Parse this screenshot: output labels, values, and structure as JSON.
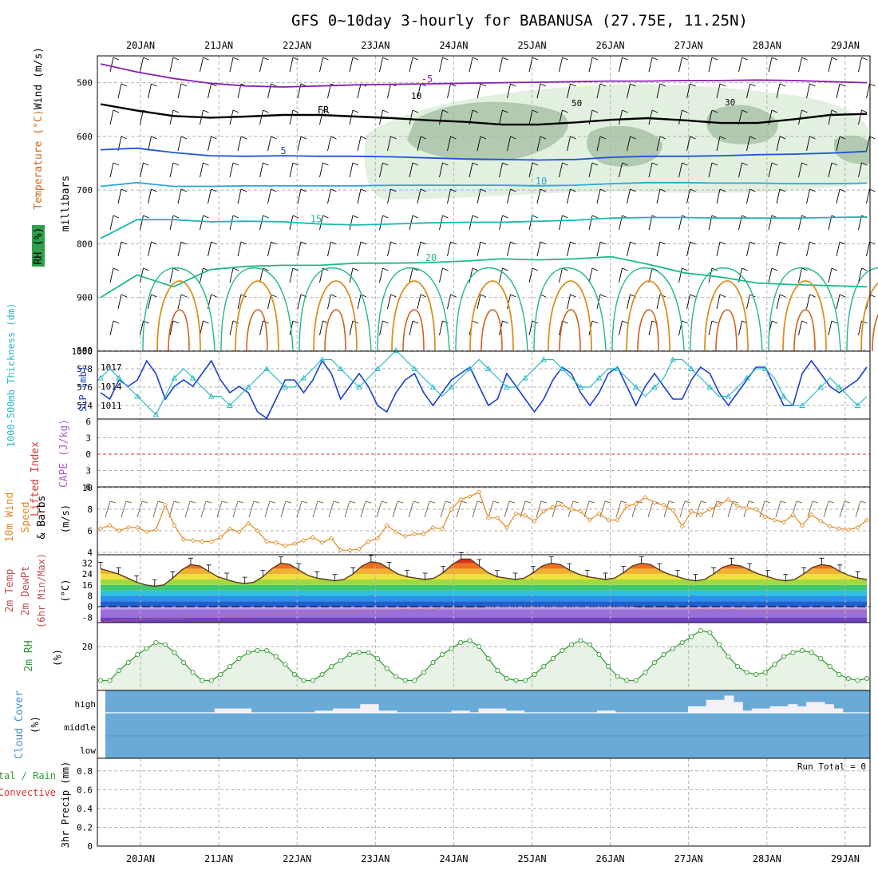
{
  "title": "GFS 0~10day 3-hourly for BABANUSA (27.75E, 11.25N)",
  "dates": [
    "20JAN",
    "21JAN",
    "22JAN",
    "23JAN",
    "24JAN",
    "25JAN",
    "26JAN",
    "27JAN",
    "28JAN",
    "29JAN"
  ],
  "colors": {
    "dewpoint": "#8a5cd8",
    "temp_line": "#5a3a1a",
    "wind_speed": "#e08a20",
    "barb": "#000000",
    "slp": "#1a3fcf",
    "thickness": "#2ab8c8",
    "rh": "#2f9a2f",
    "cloud": "#6aaad8",
    "cloud_gap": "#f4f0f8",
    "lifted": "#e03030",
    "cape": "#b060d0"
  },
  "chart_data": [
    {
      "type": "heatmap",
      "panel": "upper-air",
      "yaxis_label": "millibars",
      "ylim": [
        450,
        1000
      ],
      "yticks": [
        500,
        600,
        700,
        800,
        900,
        1000
      ],
      "side_labels": [
        "RH (%)",
        "Temperature (°C)",
        "Wind (m/s)"
      ],
      "isotherms": [
        {
          "label": "-5",
          "y": [
            465,
            480,
            492,
            501,
            506,
            508,
            506,
            504,
            503,
            502,
            501,
            500,
            499,
            498,
            497,
            497,
            496,
            496,
            495,
            496,
            498,
            500
          ]
        },
        {
          "label": "FR",
          "y": [
            540,
            552,
            562,
            565,
            563,
            560,
            560,
            563,
            566,
            570,
            573,
            578,
            578,
            574,
            569,
            566,
            570,
            575,
            575,
            568,
            560,
            558
          ]
        },
        {
          "label": "5",
          "y": [
            625,
            622,
            630,
            636,
            637,
            636,
            637,
            637,
            638,
            640,
            642,
            643,
            644,
            643,
            639,
            637,
            637,
            636,
            634,
            633,
            631,
            628
          ]
        },
        {
          "label": "10",
          "y": [
            693,
            686,
            693,
            693,
            692,
            692,
            692,
            692,
            691,
            691,
            691,
            691,
            692,
            691,
            688,
            686,
            686,
            687,
            687,
            688,
            688,
            687
          ]
        },
        {
          "label": "15",
          "y": [
            790,
            755,
            755,
            759,
            758,
            759,
            763,
            765,
            763,
            761,
            760,
            760,
            758,
            756,
            752,
            751,
            751,
            752,
            752,
            752,
            751,
            750
          ]
        },
        {
          "label": "20",
          "y": [
            900,
            858,
            880,
            848,
            842,
            840,
            840,
            836,
            836,
            835,
            832,
            828,
            830,
            828,
            824,
            838,
            854,
            862,
            873,
            876,
            878,
            880
          ]
        }
      ],
      "rh_labels": [
        "50",
        "30",
        "10"
      ]
    },
    {
      "type": "line",
      "panel": "thickness-slp",
      "yaxis_labels": [
        "1000-500mb Thickness (dm)",
        "SLP (mb)"
      ],
      "left_ticks": [
        574,
        576,
        578,
        580
      ],
      "right_ticks": [
        1011,
        1014,
        1017
      ],
      "series": [
        {
          "name": "SLP (mb)",
          "axis": "right",
          "values": [
            1013,
            1012,
            1015,
            1014,
            1015,
            1018,
            1016,
            1012,
            1014,
            1015,
            1014,
            1016,
            1018,
            1015,
            1013,
            1014,
            1013,
            1010,
            1009,
            1012,
            1015,
            1015,
            1013,
            1015,
            1018,
            1016,
            1012,
            1014,
            1016,
            1014,
            1011,
            1010,
            1013,
            1015,
            1016,
            1013,
            1011,
            1013,
            1015,
            1016,
            1017,
            1014,
            1011,
            1012,
            1016,
            1014,
            1012,
            1010,
            1012,
            1015,
            1017,
            1016,
            1013,
            1011,
            1013,
            1016,
            1017,
            1014,
            1011,
            1014,
            1016,
            1014,
            1012,
            1012,
            1015,
            1017,
            1016,
            1013,
            1011,
            1013,
            1015,
            1017,
            1017,
            1014,
            1011,
            1011,
            1016,
            1018,
            1016,
            1014,
            1013,
            1014,
            1015,
            1017
          ]
        },
        {
          "name": "Thickness (dm)",
          "axis": "left",
          "values": [
            577,
            578,
            577,
            576,
            575,
            574,
            573,
            575,
            577,
            578,
            577,
            576,
            575,
            575,
            574,
            575,
            576,
            577,
            578,
            577,
            576,
            576,
            577,
            578,
            579,
            579,
            578,
            577,
            576,
            577,
            578,
            579,
            580,
            579,
            578,
            577,
            576,
            575,
            576,
            577,
            578,
            579,
            578,
            577,
            576,
            576,
            577,
            578,
            579,
            579,
            578,
            577,
            576,
            576,
            577,
            578,
            578,
            577,
            576,
            575,
            576,
            577,
            579,
            579,
            578,
            577,
            576,
            575,
            575,
            576,
            577,
            578,
            578,
            577,
            575,
            574,
            574,
            575,
            576,
            577,
            576,
            575,
            574,
            575
          ]
        }
      ]
    },
    {
      "type": "line",
      "panel": "instability",
      "yaxis_labels": [
        "Lifted Index",
        "CAPE (J/kg)"
      ],
      "ticks": [
        "6",
        "3",
        "0",
        "3",
        "6"
      ],
      "series": [
        {
          "name": "Lifted Index",
          "values": []
        }
      ]
    },
    {
      "type": "line",
      "panel": "10m-wind",
      "yaxis_labels": [
        "10m Wind Speed & Barbs",
        "(m/s)"
      ],
      "ylim": [
        4,
        10
      ],
      "yticks": [
        4,
        6,
        8,
        10
      ],
      "series": [
        {
          "name": "10m Wind Speed",
          "values": [
            6.2,
            6.5,
            6.0,
            6.3,
            6.3,
            5.9,
            6.1,
            8.4,
            6.5,
            5.2,
            5.1,
            5.0,
            5.0,
            5.4,
            6.2,
            5.9,
            6.7,
            6.0,
            5.0,
            4.9,
            4.6,
            4.8,
            5.1,
            5.4,
            4.9,
            5.3,
            4.2,
            4.2,
            4.3,
            5.0,
            5.3,
            6.5,
            5.9,
            5.5,
            5.7,
            5.7,
            6.3,
            6.2,
            8.0,
            8.9,
            9.2,
            9.6,
            7.2,
            7.2,
            6.3,
            7.6,
            7.4,
            6.9,
            7.8,
            8.2,
            8.4,
            8.0,
            7.8,
            7.0,
            7.6,
            7.0,
            7.0,
            8.3,
            8.5,
            9.1,
            8.6,
            8.4,
            7.9,
            6.4,
            7.8,
            7.5,
            8.0,
            8.4,
            8.9,
            8.3,
            8.1,
            8.0,
            7.3,
            7.0,
            6.8,
            7.5,
            6.5,
            7.5,
            6.9,
            6.4,
            6.2,
            6.1,
            6.3,
            7.0
          ]
        }
      ]
    },
    {
      "type": "line",
      "panel": "2m-temp",
      "yaxis_labels": [
        "2m Temp",
        "2m DewPt",
        "(6hr Min/Max)",
        "(°C)"
      ],
      "yticks": [
        -8,
        0,
        8,
        16,
        24,
        32
      ],
      "series": [
        {
          "name": "2m Temp",
          "values": [
            28,
            26,
            24,
            21,
            18,
            16,
            15,
            16,
            21,
            27,
            31,
            30,
            26,
            22,
            20,
            18,
            17,
            18,
            22,
            28,
            32,
            31,
            27,
            23,
            21,
            20,
            19,
            20,
            24,
            30,
            33,
            32,
            28,
            24,
            22,
            21,
            20,
            21,
            25,
            31,
            35,
            35,
            30,
            25,
            22,
            21,
            20,
            21,
            25,
            30,
            32,
            31,
            27,
            24,
            22,
            21,
            20,
            21,
            25,
            30,
            32,
            31,
            27,
            24,
            22,
            20,
            19,
            20,
            24,
            29,
            31,
            30,
            27,
            24,
            22,
            20,
            19,
            20,
            24,
            29,
            31,
            30,
            26,
            23,
            21,
            20
          ]
        },
        {
          "name": "2m DewPt",
          "values": [
            -11,
            -11,
            -10,
            -10,
            -10,
            -9,
            -9,
            -9,
            -9,
            -9,
            -8,
            -8,
            -8,
            -8,
            -7,
            -7,
            -7,
            -6,
            -6,
            -6,
            -5,
            -5,
            -5,
            -5,
            -5,
            -4,
            -4,
            -4,
            -4,
            -3,
            -3,
            -3,
            -3,
            -2,
            -2,
            -2,
            -2,
            -2,
            -1,
            -1,
            -1,
            -1,
            -1,
            0,
            0,
            0,
            0,
            0,
            0,
            0,
            0,
            0,
            0,
            0,
            0,
            0,
            0,
            0,
            0,
            0,
            -1,
            -1,
            -1,
            -1,
            -1,
            -1,
            -2,
            -2,
            -2,
            -2,
            -2,
            -2,
            -3,
            -3,
            -3,
            -3,
            -3,
            -3,
            -3,
            -3,
            -3,
            -3,
            -3,
            -3,
            -3,
            -3
          ]
        }
      ]
    },
    {
      "type": "area",
      "panel": "2m-rh",
      "yaxis_labels": [
        "2m RH",
        "(%)"
      ],
      "yticks": [
        20
      ],
      "series": [
        {
          "name": "2m RH",
          "values": [
            3,
            3,
            8,
            12,
            16,
            19,
            22,
            21,
            17,
            12,
            7,
            3,
            3,
            6,
            10,
            14,
            17,
            18,
            18,
            15,
            11,
            6,
            3,
            3,
            6,
            10,
            13,
            16,
            17,
            17,
            14,
            9,
            5,
            3,
            3,
            7,
            12,
            16,
            19,
            22,
            23,
            20,
            14,
            8,
            4,
            3,
            3,
            6,
            10,
            14,
            18,
            21,
            23,
            21,
            16,
            10,
            5,
            3,
            3,
            7,
            12,
            16,
            19,
            22,
            25,
            28,
            27,
            21,
            15,
            10,
            7,
            6,
            7,
            11,
            15,
            17,
            18,
            17,
            14,
            10,
            6,
            4,
            3,
            4
          ]
        }
      ]
    },
    {
      "type": "bar",
      "panel": "cloud-cover",
      "yaxis_labels": [
        "Cloud Cover",
        "(%)"
      ],
      "layers": [
        "high",
        "middle",
        "low"
      ],
      "series": [
        {
          "name": "high",
          "values": [
            0,
            0,
            0,
            0,
            0,
            0,
            0,
            0,
            0,
            0,
            0,
            0,
            20,
            20,
            20,
            20,
            0,
            0,
            0,
            0,
            0,
            0,
            0,
            10,
            10,
            20,
            20,
            20,
            40,
            40,
            10,
            10,
            0,
            0,
            0,
            0,
            0,
            0,
            10,
            10,
            0,
            20,
            20,
            20,
            10,
            10,
            0,
            0,
            0,
            0,
            0,
            0,
            0,
            0,
            10,
            10,
            0,
            0,
            0,
            0,
            0,
            0,
            0,
            0,
            30,
            30,
            60,
            60,
            80,
            50,
            10,
            20,
            20,
            30,
            30,
            40,
            30,
            50,
            50,
            40,
            20,
            0,
            0,
            0
          ]
        }
      ]
    },
    {
      "type": "bar",
      "panel": "precip",
      "yaxis_labels": [
        "Total / Rain",
        "Convective",
        "3hr Precip (mm)"
      ],
      "ylim": [
        0,
        0.9
      ],
      "yticks": [
        0,
        0.2,
        0.4,
        0.6,
        0.8
      ],
      "run_total": "Run Total = 0",
      "series": [
        {
          "name": "Total / Rain",
          "values": []
        }
      ]
    }
  ]
}
